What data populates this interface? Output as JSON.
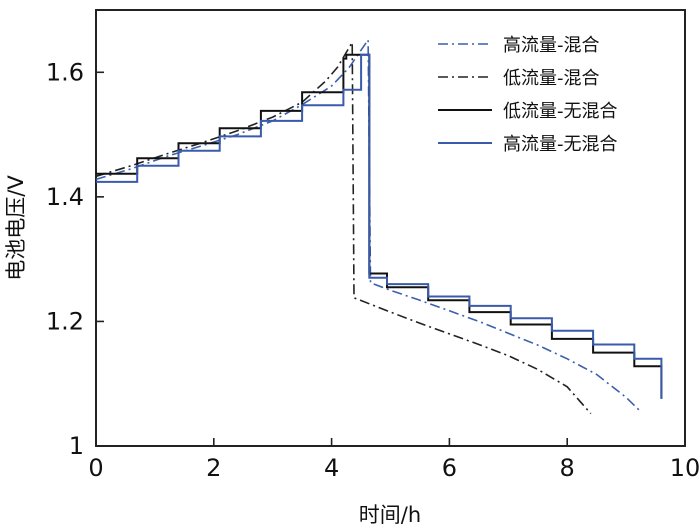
{
  "chart_data": {
    "type": "line",
    "xlabel": "时间/h",
    "ylabel": "电池电压/V",
    "xlim": [
      0,
      10
    ],
    "ylim": [
      1.0,
      1.7
    ],
    "x_ticks": [
      0,
      2,
      4,
      6,
      8,
      10
    ],
    "x_tick_labels": [
      "0",
      "2",
      "4",
      "6",
      "8",
      "10"
    ],
    "y_ticks": [
      1.0,
      1.2,
      1.4,
      1.6
    ],
    "y_tick_labels": [
      "1",
      "1.2",
      "1.4",
      "1.6"
    ],
    "grid": false,
    "legend_position": "top-right",
    "series": [
      {
        "name": "高流量-混合",
        "color": "#3a5fae",
        "dash": "dashdot",
        "points": [
          [
            0,
            1.428
          ],
          [
            0.6,
            1.445
          ],
          [
            1.2,
            1.465
          ],
          [
            1.8,
            1.482
          ],
          [
            2.4,
            1.5
          ],
          [
            3.0,
            1.522
          ],
          [
            3.5,
            1.548
          ],
          [
            4.0,
            1.578
          ],
          [
            4.3,
            1.608
          ],
          [
            4.62,
            1.652
          ],
          [
            4.66,
            1.262
          ],
          [
            5.0,
            1.25
          ],
          [
            5.5,
            1.234
          ],
          [
            6.0,
            1.217
          ],
          [
            6.5,
            1.2
          ],
          [
            7.0,
            1.181
          ],
          [
            7.5,
            1.162
          ],
          [
            8.0,
            1.14
          ],
          [
            8.5,
            1.115
          ],
          [
            9.0,
            1.078
          ],
          [
            9.25,
            1.055
          ]
        ]
      },
      {
        "name": "低流量-混合",
        "color": "#222222",
        "dash": "dashdot",
        "points": [
          [
            0,
            1.433
          ],
          [
            0.6,
            1.45
          ],
          [
            1.2,
            1.469
          ],
          [
            1.8,
            1.487
          ],
          [
            2.4,
            1.506
          ],
          [
            3.0,
            1.528
          ],
          [
            3.5,
            1.552
          ],
          [
            3.9,
            1.586
          ],
          [
            4.1,
            1.608
          ],
          [
            4.35,
            1.648
          ],
          [
            4.38,
            1.238
          ],
          [
            5.0,
            1.215
          ],
          [
            5.5,
            1.197
          ],
          [
            6.0,
            1.18
          ],
          [
            6.5,
            1.163
          ],
          [
            7.0,
            1.145
          ],
          [
            7.5,
            1.123
          ],
          [
            8.0,
            1.095
          ],
          [
            8.4,
            1.052
          ]
        ]
      },
      {
        "name": "低流量-无混合",
        "color": "#111111",
        "dash": "solid",
        "step_width": 0.7,
        "charge": {
          "start": 0,
          "end": 4.25,
          "v0": 1.437,
          "levels": [
            1.437,
            1.462,
            1.486,
            1.51,
            1.538,
            1.568,
            1.622
          ],
          "top": 1.628
        },
        "discharge": {
          "start": 4.64,
          "end": 9.6,
          "v0": 1.277,
          "levels": [
            1.277,
            1.255,
            1.234,
            1.215,
            1.195,
            1.172,
            1.15,
            1.128,
            1.077
          ],
          "end_value": 1.076
        }
      },
      {
        "name": "高流量-无混合",
        "color": "#3a5bab",
        "dash": "solid",
        "step_width": 0.7,
        "charge": {
          "start": 0,
          "end": 4.5,
          "v0": 1.424,
          "levels": [
            1.424,
            1.45,
            1.474,
            1.497,
            1.522,
            1.547,
            1.572,
            1.595
          ],
          "top": 1.628
        },
        "discharge": {
          "start": 4.64,
          "end": 9.6,
          "v0": 1.27,
          "levels": [
            1.27,
            1.26,
            1.24,
            1.225,
            1.205,
            1.185,
            1.163,
            1.14,
            1.118,
            1.095,
            1.076
          ],
          "end_value": 1.076
        }
      }
    ]
  }
}
